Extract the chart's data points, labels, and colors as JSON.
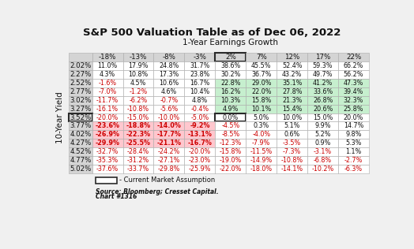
{
  "title": "S&P 500 Valuation Table as of Dec 06, 2022",
  "col_header_label": "1-Year Earnings Growth",
  "row_header_label": "10-Year Yield",
  "col_headers": [
    "-18%",
    "-13%",
    "-8%",
    "-3%",
    "2%",
    "7%",
    "12%",
    "17%",
    "22%"
  ],
  "row_headers": [
    "2.02%",
    "2.27%",
    "2.52%",
    "2.77%",
    "3.02%",
    "3.27%",
    "3.52%",
    "3.77%",
    "4.02%",
    "4.27%",
    "4.52%",
    "4.77%",
    "5.02%"
  ],
  "table_data": [
    [
      "11.0%",
      "17.9%",
      "24.8%",
      "31.7%",
      "38.6%",
      "45.5%",
      "52.4%",
      "59.3%",
      "66.2%"
    ],
    [
      "4.3%",
      "10.8%",
      "17.3%",
      "23.8%",
      "30.2%",
      "36.7%",
      "43.2%",
      "49.7%",
      "56.2%"
    ],
    [
      "-1.6%",
      "4.5%",
      "10.6%",
      "16.7%",
      "22.8%",
      "29.0%",
      "35.1%",
      "41.2%",
      "47.3%"
    ],
    [
      "-7.0%",
      "-1.2%",
      "4.6%",
      "10.4%",
      "16.2%",
      "22.0%",
      "27.8%",
      "33.6%",
      "39.4%"
    ],
    [
      "-11.7%",
      "-6.2%",
      "-0.7%",
      "4.8%",
      "10.3%",
      "15.8%",
      "21.3%",
      "26.8%",
      "32.3%"
    ],
    [
      "-16.1%",
      "-10.8%",
      "-5.6%",
      "-0.4%",
      "4.9%",
      "10.1%",
      "15.4%",
      "20.6%",
      "25.8%"
    ],
    [
      "-20.0%",
      "-15.0%",
      "-10.0%",
      "-5.0%",
      "0.0%",
      "5.0%",
      "10.0%",
      "15.0%",
      "20.0%"
    ],
    [
      "-23.6%",
      "-18.8%",
      "-14.0%",
      "-9.2%",
      "-4.5%",
      "0.3%",
      "5.1%",
      "9.9%",
      "14.7%"
    ],
    [
      "-26.9%",
      "-22.3%",
      "-17.7%",
      "-13.1%",
      "-8.5%",
      "-4.0%",
      "0.6%",
      "5.2%",
      "9.8%"
    ],
    [
      "-29.9%",
      "-25.5%",
      "-21.1%",
      "-16.7%",
      "-12.3%",
      "-7.9%",
      "-3.5%",
      "0.9%",
      "5.3%"
    ],
    [
      "-32.7%",
      "-28.4%",
      "-24.2%",
      "-20.0%",
      "-15.8%",
      "-11.5%",
      "-7.3%",
      "-3.1%",
      "1.1%"
    ],
    [
      "-35.3%",
      "-31.2%",
      "-27.1%",
      "-23.0%",
      "-19.0%",
      "-14.9%",
      "-10.8%",
      "-6.8%",
      "-2.7%"
    ],
    [
      "-37.6%",
      "-33.7%",
      "-29.8%",
      "-25.9%",
      "-22.0%",
      "-18.0%",
      "-14.1%",
      "-10.2%",
      "-6.3%"
    ]
  ],
  "numeric_data": [
    [
      11.0,
      17.9,
      24.8,
      31.7,
      38.6,
      45.5,
      52.4,
      59.3,
      66.2
    ],
    [
      4.3,
      10.8,
      17.3,
      23.8,
      30.2,
      36.7,
      43.2,
      49.7,
      56.2
    ],
    [
      -1.6,
      4.5,
      10.6,
      16.7,
      22.8,
      29.0,
      35.1,
      41.2,
      47.3
    ],
    [
      -7.0,
      -1.2,
      4.6,
      10.4,
      16.2,
      22.0,
      27.8,
      33.6,
      39.4
    ],
    [
      -11.7,
      -6.2,
      -0.7,
      4.8,
      10.3,
      15.8,
      21.3,
      26.8,
      32.3
    ],
    [
      -16.1,
      -10.8,
      -5.6,
      -0.4,
      4.9,
      10.1,
      15.4,
      20.6,
      25.8
    ],
    [
      -20.0,
      -15.0,
      -10.0,
      -5.0,
      0.0,
      5.0,
      10.0,
      15.0,
      20.0
    ],
    [
      -23.6,
      -18.8,
      -14.0,
      -9.2,
      -4.5,
      0.3,
      5.1,
      9.9,
      14.7
    ],
    [
      -26.9,
      -22.3,
      -17.7,
      -13.1,
      -8.5,
      -4.0,
      0.6,
      5.2,
      9.8
    ],
    [
      -29.9,
      -25.5,
      -21.1,
      -16.7,
      -12.3,
      -7.9,
      -3.5,
      0.9,
      5.3
    ],
    [
      -32.7,
      -28.4,
      -24.2,
      -20.0,
      -15.8,
      -11.5,
      -7.3,
      -3.1,
      1.1
    ],
    [
      -35.3,
      -31.2,
      -27.1,
      -23.0,
      -19.0,
      -14.9,
      -10.8,
      -6.8,
      -2.7
    ],
    [
      -37.6,
      -33.7,
      -29.8,
      -25.9,
      -22.0,
      -18.0,
      -14.1,
      -10.2,
      -6.3
    ]
  ],
  "current_market_row": 6,
  "current_market_col": 4,
  "fig_bg": "#f0f0f0",
  "header_bg": "#d4d4d4",
  "green_color": "#c6efce",
  "pink_color": "#ffc7ce",
  "white_cell": "#ffffff",
  "source_text": "Source: Bloomberg; Cresset Capital.",
  "chart_text": "Chart #1316",
  "legend_text": "- Current Market Assumption",
  "title_fontsize": 9.5,
  "cell_fontsize": 5.8,
  "header_fontsize": 6.2,
  "label_fontsize": 7.5
}
